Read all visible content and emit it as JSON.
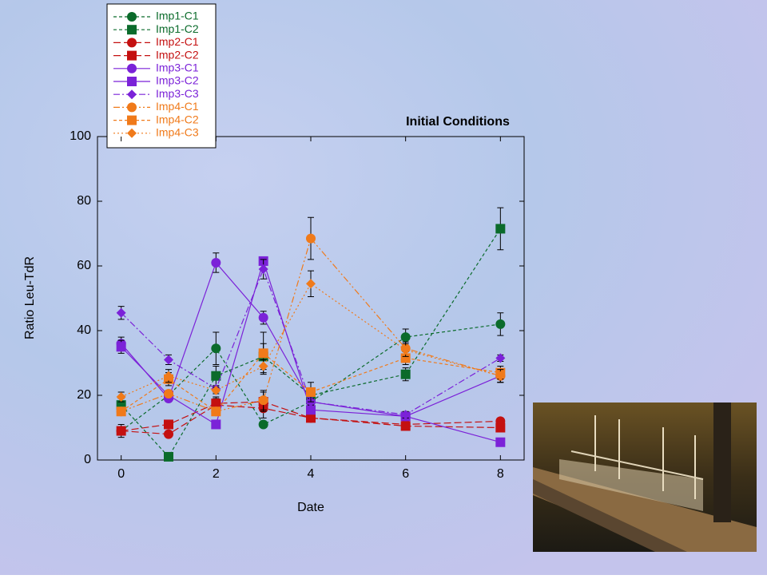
{
  "chart_data": {
    "type": "line",
    "title": "Initial Conditions",
    "x_label": "Date",
    "y_label": "Ratio Leu-TdR",
    "x": [
      0,
      1,
      2,
      3,
      4,
      6,
      8
    ],
    "xlim": [
      -0.5,
      8.5
    ],
    "xticks": [
      0,
      2,
      4,
      6,
      8
    ],
    "ylim": [
      0,
      100
    ],
    "yticks": [
      0,
      20,
      40,
      60,
      80,
      100
    ],
    "legend": "top-left",
    "series": [
      {
        "name": "Imp1-C1",
        "color": "#0b6b2b",
        "line_style": "dashed",
        "marker": "circle",
        "values": [
          9,
          20,
          34.5,
          11,
          18,
          38,
          42
        ],
        "errors": [
          2,
          1.5,
          5,
          1,
          2,
          2.5,
          3.5
        ]
      },
      {
        "name": "Imp1-C2",
        "color": "#0b6b2b",
        "line_style": "dashed",
        "marker": "square",
        "values": [
          17,
          1,
          26,
          32,
          20,
          26.5,
          71.5
        ],
        "errors": [
          2,
          1,
          3,
          4,
          2,
          2,
          6.5
        ]
      },
      {
        "name": "Imp2-C1",
        "color": "#c41010",
        "line_style": "longdash",
        "marker": "circle",
        "values": [
          9,
          8,
          17,
          16,
          13,
          11,
          12
        ],
        "errors": [
          1,
          1,
          2,
          3,
          1,
          1,
          1
        ]
      },
      {
        "name": "Imp2-C2",
        "color": "#c41010",
        "line_style": "longdash",
        "marker": "square",
        "values": [
          9,
          11,
          17.5,
          18,
          13,
          10.5,
          10
        ],
        "errors": [
          1,
          1,
          2,
          3,
          1,
          1,
          1
        ]
      },
      {
        "name": "Imp3-C1",
        "color": "#7b22d8",
        "line_style": "solid",
        "marker": "circle",
        "values": [
          36,
          19,
          61,
          44,
          18,
          13.5,
          26
        ],
        "errors": [
          2,
          1,
          3,
          2,
          2,
          1,
          2
        ]
      },
      {
        "name": "Imp3-C2",
        "color": "#7b22d8",
        "line_style": "solid",
        "marker": "square",
        "values": [
          35,
          20,
          11,
          61.5,
          15.5,
          13.5,
          5.5
        ],
        "errors": [
          2,
          1,
          1,
          1,
          1,
          1,
          1
        ]
      },
      {
        "name": "Imp3-C3",
        "color": "#7b22d8",
        "line_style": "dashdot",
        "marker": "diamond",
        "values": [
          45.5,
          31,
          22,
          59,
          18,
          14,
          31.5
        ],
        "errors": [
          2,
          1.5,
          1,
          3,
          1,
          1,
          1
        ]
      },
      {
        "name": "Imp4-C1",
        "color": "#f07a1a",
        "line_style": "dashdotdot",
        "marker": "circle",
        "values": [
          15,
          20.5,
          15,
          18.5,
          68.5,
          34.5,
          26
        ],
        "errors": [
          1,
          1,
          1,
          3,
          6.5,
          2,
          2
        ]
      },
      {
        "name": "Imp4-C2",
        "color": "#f07a1a",
        "line_style": "dashed",
        "marker": "square",
        "values": [
          15,
          25,
          15,
          33,
          21,
          31.5,
          27
        ],
        "errors": [
          1,
          2,
          1,
          6.5,
          3,
          2,
          2
        ]
      },
      {
        "name": "Imp4-C3",
        "color": "#f07a1a",
        "line_style": "dotted",
        "marker": "diamond",
        "values": [
          19.5,
          26,
          21.5,
          29,
          54.5,
          34,
          26
        ],
        "errors": [
          1.5,
          2,
          1,
          2,
          4,
          2,
          2
        ]
      }
    ]
  }
}
